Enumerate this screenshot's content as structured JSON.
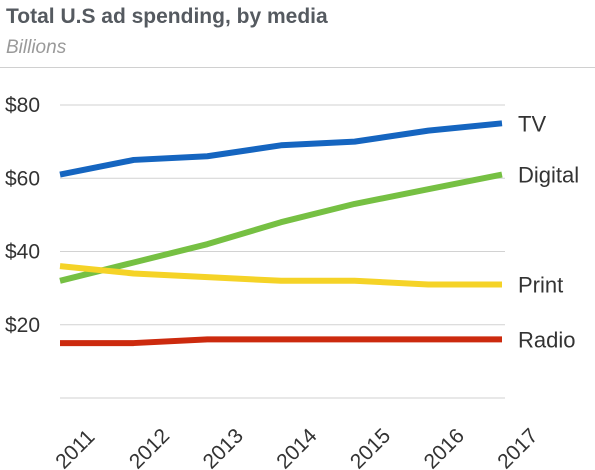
{
  "header": {
    "title": "Total U.S ad spending, by media",
    "subtitle": "Billions"
  },
  "chart_data": {
    "type": "line",
    "title": "Total U.S ad spending, by media",
    "subtitle": "Billions",
    "x": [
      "2011",
      "2012",
      "2013",
      "2014",
      "2015",
      "2016",
      "2017"
    ],
    "y_ticks": [
      20,
      40,
      60,
      80
    ],
    "y_tick_labels": [
      "$20",
      "$40",
      "$60",
      "$80"
    ],
    "ylim": [
      0,
      82
    ],
    "grid": true,
    "legend": "inline-right",
    "series": [
      {
        "name": "TV",
        "color": "#1565c0",
        "values": [
          61,
          65,
          66,
          69,
          70,
          73,
          75
        ]
      },
      {
        "name": "Digital",
        "color": "#76c043",
        "values": [
          32,
          37,
          42,
          48,
          53,
          57,
          61
        ]
      },
      {
        "name": "Print",
        "color": "#f5d327",
        "values": [
          36,
          34,
          33,
          32,
          32,
          31,
          31
        ]
      },
      {
        "name": "Radio",
        "color": "#cc2a0e",
        "values": [
          15,
          15,
          16,
          16,
          16,
          16,
          16
        ]
      }
    ]
  }
}
